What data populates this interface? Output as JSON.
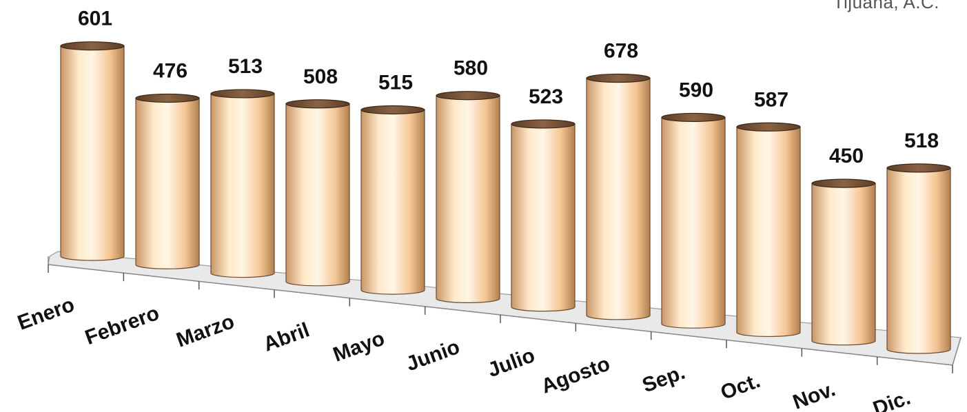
{
  "corner_text": "Tijuana, A.C.",
  "colors": {
    "bar_light": "#fff2d9",
    "bar_mid": "#f6c79a",
    "bar_dark": "#b78356",
    "bar_top": "#6e4b33",
    "floor": "#e6e6e6",
    "text": "#111111"
  },
  "chart_data": {
    "type": "bar",
    "style": "3d-cylinder",
    "categories": [
      "Enero",
      "Febrero",
      "Marzo",
      "Abril",
      "Mayo",
      "Junio",
      "Julio",
      "Agosto",
      "Sep.",
      "Oct.",
      "Nov.",
      "Dic."
    ],
    "values": [
      601,
      476,
      513,
      508,
      515,
      580,
      523,
      678,
      590,
      587,
      450,
      518
    ],
    "data_labels": [
      "601",
      "476",
      "513",
      "508",
      "515",
      "580",
      "523",
      "678",
      "590",
      "587",
      "450",
      "518"
    ],
    "title": "",
    "xlabel": "",
    "ylabel": "",
    "ylim": [
      0,
      700
    ],
    "grid": false,
    "legend": "none"
  }
}
